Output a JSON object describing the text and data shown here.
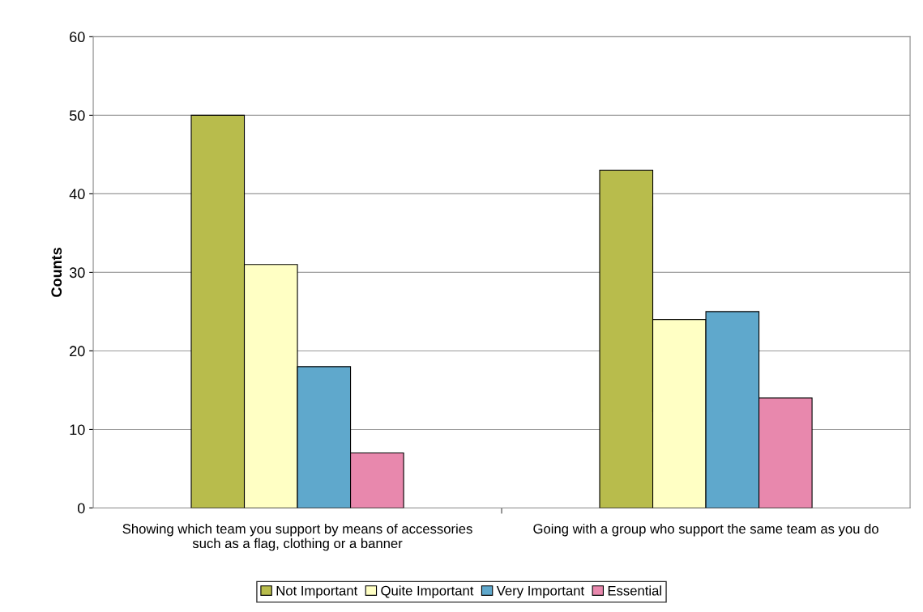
{
  "chart_data": {
    "type": "bar",
    "ylabel": "Counts",
    "categories": [
      "Showing which team you support by means of accessories such as a flag, clothing or a banner",
      "Going with a group who support the same team as you do"
    ],
    "series": [
      {
        "name": "Not Important",
        "color": "#b8bc4c",
        "values": [
          50,
          43
        ]
      },
      {
        "name": "Quite Important",
        "color": "#ffffc4",
        "values": [
          31,
          24
        ]
      },
      {
        "name": "Very Important",
        "color": "#5fa8cc",
        "values": [
          18,
          25
        ]
      },
      {
        "name": "Essential",
        "color": "#e888ad",
        "values": [
          7,
          14
        ]
      }
    ],
    "ylim": [
      0,
      60
    ],
    "yticks": [
      0,
      10,
      20,
      30,
      40,
      50,
      60
    ],
    "grid": "y",
    "legend": "bottom"
  }
}
